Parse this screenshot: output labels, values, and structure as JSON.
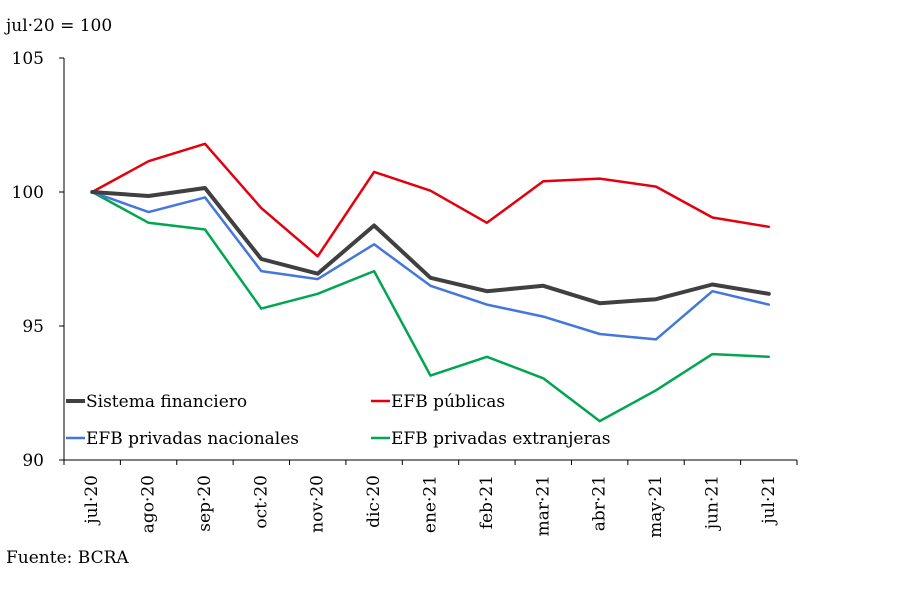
{
  "unit_label": "jul·20 = 100",
  "source": "Fuente: BCRA",
  "chart_data": {
    "type": "line",
    "categories": [
      "jul·20",
      "ago·20",
      "sep·20",
      "oct·20",
      "nov·20",
      "dic·20",
      "ene·21",
      "feb·21",
      "mar·21",
      "abr·21",
      "may·21",
      "jun·21",
      "jul·21"
    ],
    "ylim": [
      90,
      105
    ],
    "yticks": [
      90,
      95,
      100,
      105
    ],
    "grid": false,
    "legend_position": "bottom-left, two columns inside plot",
    "series": [
      {
        "name": "Sistema financiero",
        "color": "#404040",
        "width": 4,
        "values": [
          100,
          99.85,
          100.15,
          97.5,
          96.95,
          98.75,
          96.8,
          96.3,
          96.5,
          95.85,
          96.0,
          96.55,
          96.2
        ]
      },
      {
        "name": "EFB públicas",
        "color": "#e3000f",
        "width": 2.5,
        "values": [
          100,
          101.15,
          101.8,
          99.4,
          97.6,
          100.75,
          100.05,
          98.85,
          100.4,
          100.5,
          100.2,
          99.05,
          98.7
        ]
      },
      {
        "name": "EFB privadas nacionales",
        "color": "#4477dd",
        "width": 2.5,
        "values": [
          100,
          99.25,
          99.8,
          97.05,
          96.75,
          98.05,
          96.5,
          95.8,
          95.35,
          94.7,
          94.5,
          96.3,
          95.8
        ]
      },
      {
        "name": "EFB privadas extranjeras",
        "color": "#00a650",
        "width": 2.5,
        "values": [
          100,
          98.85,
          98.6,
          95.65,
          96.2,
          97.05,
          93.15,
          93.85,
          93.05,
          91.45,
          92.6,
          93.95,
          93.85
        ]
      }
    ]
  }
}
